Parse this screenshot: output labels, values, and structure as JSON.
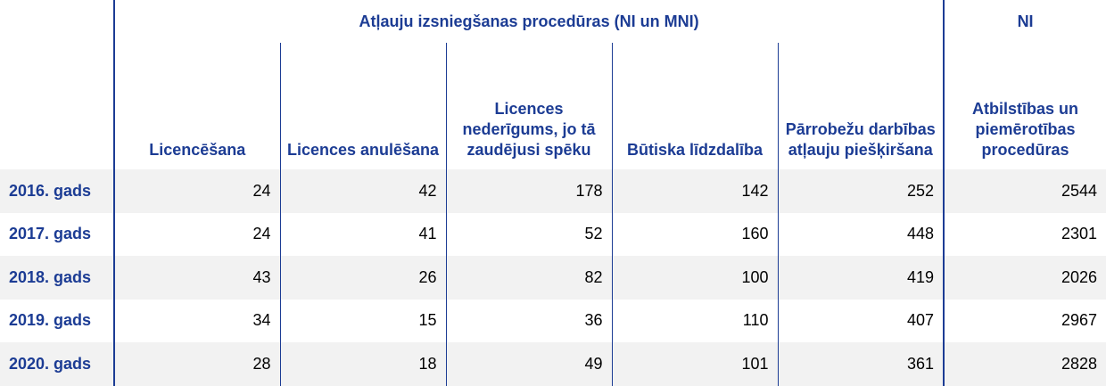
{
  "header": {
    "group_label": "Atļauju izsniegšanas procedūras (NI un MNI)",
    "ni_label": "NI",
    "columns": [
      "Licencēšana",
      "Licences anulēšana",
      "Licences nederīgums, jo tā zaudējusi spēku",
      "Būtiska līdzdalība",
      "Pārrobežu darbības atļauju piešķiršana",
      "Atbilstības un piemērotības procedūras"
    ]
  },
  "rows": [
    {
      "label": "2016. gads",
      "values": [
        "24",
        "42",
        "178",
        "142",
        "252",
        "2544"
      ]
    },
    {
      "label": "2017. gads",
      "values": [
        "24",
        "41",
        "52",
        "160",
        "448",
        "2301"
      ]
    },
    {
      "label": "2018. gads",
      "values": [
        "43",
        "26",
        "82",
        "100",
        "419",
        "2026"
      ]
    },
    {
      "label": "2019. gads",
      "values": [
        "34",
        "15",
        "36",
        "110",
        "407",
        "2967"
      ]
    },
    {
      "label": "2020. gads",
      "values": [
        "28",
        "18",
        "49",
        "101",
        "361",
        "2828"
      ]
    }
  ],
  "colors": {
    "accent": "#1c3c94",
    "stripe": "#f2f2f2"
  }
}
